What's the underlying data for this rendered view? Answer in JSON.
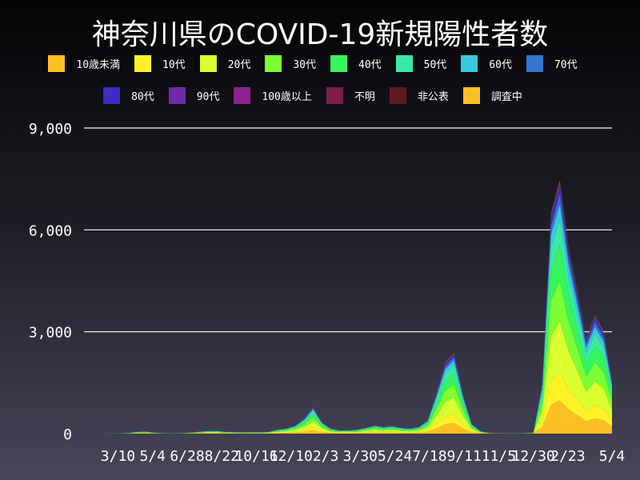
{
  "chart_data": {
    "type": "area",
    "title": "神奈川県のCOVID-19新規陽性者数",
    "stacked": true,
    "legend_placement": "top",
    "grid": "horizontal",
    "ylim": [
      0,
      9000
    ],
    "y_ticks": [
      "0",
      "3,000",
      "6,000",
      "9,000"
    ],
    "y_tick_values": [
      0,
      3000,
      6000,
      9000
    ],
    "x_ticks": [
      "3/10",
      "5/4",
      "6/28",
      "8/22",
      "10/16",
      "12/10",
      "2/3",
      "3/30",
      "5/24",
      "7/18",
      "9/11",
      "11/5",
      "12/30",
      "2/23",
      "5/4"
    ],
    "x_tick_dates": [
      "2020-03-10",
      "2020-05-04",
      "2020-06-28",
      "2020-08-22",
      "2020-10-16",
      "2020-12-10",
      "2021-02-03",
      "2021-03-30",
      "2021-05-24",
      "2021-07-18",
      "2021-09-11",
      "2021-11-05",
      "2021-12-30",
      "2022-02-23",
      "2022-05-04"
    ],
    "x_range": [
      "2020-01-16",
      "2022-05-04"
    ],
    "x_start": "2020-01-16",
    "x_step_days": 14,
    "total": [
      0,
      0,
      0,
      2,
      5,
      20,
      60,
      70,
      30,
      10,
      5,
      10,
      30,
      60,
      80,
      90,
      60,
      50,
      40,
      50,
      40,
      60,
      120,
      160,
      250,
      450,
      800,
      350,
      150,
      100,
      100,
      120,
      180,
      250,
      200,
      230,
      180,
      150,
      200,
      400,
      1200,
      2100,
      2400,
      1200,
      300,
      80,
      20,
      10,
      8,
      8,
      10,
      30,
      1500,
      6500,
      7500,
      5500,
      4200,
      2800,
      3500,
      3000,
      1600
    ],
    "series": [
      {
        "name": "10歳未満",
        "color": "#fbbf24",
        "share": 0.13
      },
      {
        "name": "10代",
        "color": "#fef227",
        "share": 0.11
      },
      {
        "name": "20代",
        "color": "#dbff2e",
        "share": 0.2
      },
      {
        "name": "30代",
        "color": "#7cff33",
        "share": 0.16
      },
      {
        "name": "40代",
        "color": "#36f55a",
        "share": 0.14
      },
      {
        "name": "50代",
        "color": "#3ae8a8",
        "share": 0.1
      },
      {
        "name": "60代",
        "color": "#38c9dd",
        "share": 0.06
      },
      {
        "name": "70代",
        "color": "#3573d0",
        "share": 0.04
      },
      {
        "name": "80代",
        "color": "#3a2fc0",
        "share": 0.03
      },
      {
        "name": "90代",
        "color": "#6d2aa8",
        "share": 0.01
      },
      {
        "name": "100歳以上",
        "color": "#8c2390",
        "share": 0.002
      },
      {
        "name": "不明",
        "color": "#7a1e4f",
        "share": 0.004
      },
      {
        "name": "非公表",
        "color": "#5e1a1e",
        "share": 0.004
      },
      {
        "name": "調査中",
        "color": "#fbbf24",
        "share": 0.004
      }
    ]
  }
}
